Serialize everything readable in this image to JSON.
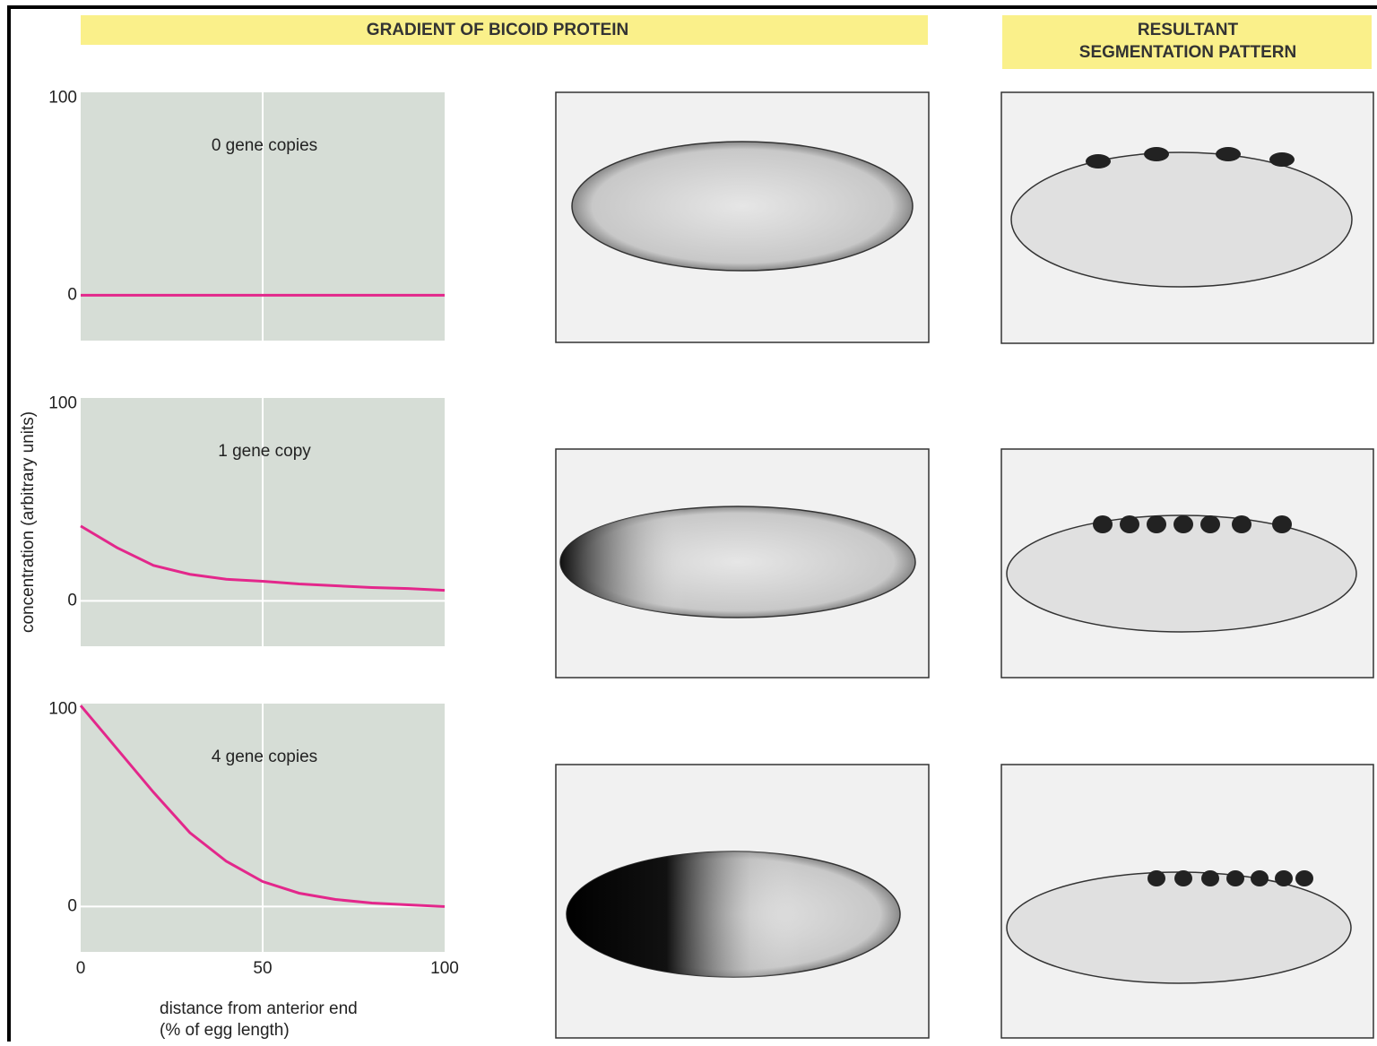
{
  "headers": {
    "left": "GRADIENT OF BICOID PROTEIN",
    "right": [
      "RESULTANT",
      "SEGMENTATION PATTERN"
    ]
  },
  "chart_data": [
    {
      "type": "line",
      "annotation": "0 gene copies",
      "xlim": [
        0,
        100
      ],
      "ylim": [
        -23,
        103
      ],
      "yticks": [
        0,
        100
      ],
      "xticks": [
        {
          "value": 50,
          "label": null
        }
      ],
      "grid": "x",
      "series": [
        {
          "color": "#e3278b",
          "x": [
            0,
            25,
            50,
            75,
            100
          ],
          "values": [
            0,
            0,
            0,
            0,
            0
          ]
        }
      ]
    },
    {
      "type": "line",
      "annotation": "1 gene copy",
      "y_label": "concentration (arbitrary units)",
      "xlim": [
        0,
        100
      ],
      "ylim": [
        -23,
        103
      ],
      "yticks": [
        0,
        100
      ],
      "xticks": [
        {
          "value": 50,
          "label": null
        }
      ],
      "grid": "x",
      "series": [
        {
          "color": "#e3278b",
          "x": [
            0,
            10,
            20,
            30,
            40,
            50,
            60,
            70,
            80,
            90,
            100
          ],
          "values": [
            38,
            27,
            18,
            13.5,
            11,
            10,
            8.6,
            7.7,
            6.8,
            6.3,
            5.4
          ]
        }
      ]
    },
    {
      "type": "line",
      "annotation": "4 gene copies",
      "x_label": [
        "distance from anterior end",
        "(% of egg length)"
      ],
      "xlim": [
        0,
        100
      ],
      "ylim": [
        -23,
        103
      ],
      "yticks": [
        0,
        100
      ],
      "xticks": [
        0,
        50,
        100
      ],
      "grid": "x",
      "series": [
        {
          "color": "#e3278b",
          "x": [
            0,
            10,
            20,
            30,
            40,
            50,
            60,
            70,
            80,
            90,
            100
          ],
          "values": [
            102,
            80,
            58,
            37.5,
            23,
            12.7,
            6.8,
            3.6,
            1.8,
            0.9,
            0
          ]
        }
      ]
    }
  ]
}
